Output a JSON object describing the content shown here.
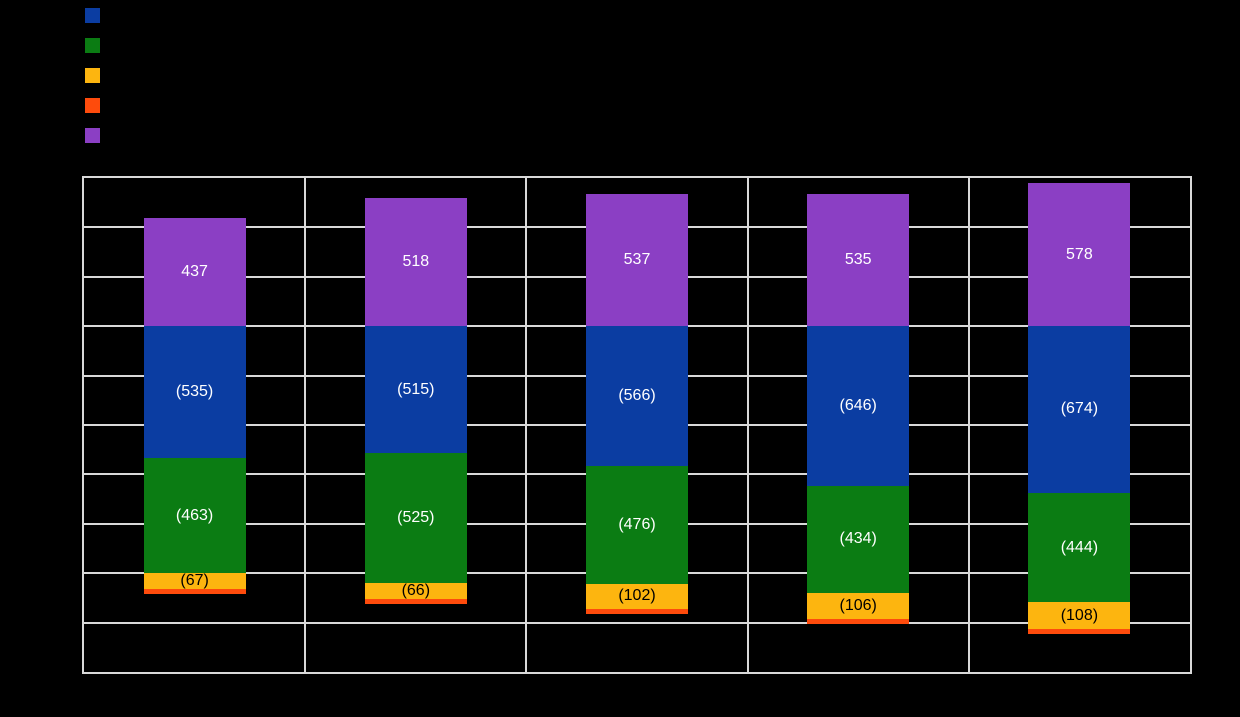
{
  "window": {
    "background_color": "#000000"
  },
  "legend": {
    "position": "top-left",
    "labels_visible": false,
    "items": [
      {
        "id": "series-1",
        "color": "#0b3da2",
        "label": ""
      },
      {
        "id": "series-2",
        "color": "#0b7c13",
        "label": ""
      },
      {
        "id": "series-3",
        "color": "#fdb50f",
        "label": ""
      },
      {
        "id": "series-4",
        "color": "#fe4b0c",
        "label": ""
      },
      {
        "id": "series-5",
        "color": "#8b3fc4",
        "label": ""
      }
    ]
  },
  "chart_data": {
    "type": "bar",
    "subtype": "stacked-positive-negative-columns",
    "title": "",
    "xlabel": "",
    "ylabel": "",
    "categories": [
      "",
      "",
      "",
      "",
      ""
    ],
    "category_count": 5,
    "ylim": [
      -1400,
      600
    ],
    "grid_step": 200,
    "grid": true,
    "axis_tick_labels_visible": false,
    "zero_line_value": 0,
    "series": [
      {
        "name": "",
        "legend_ref": "series-5",
        "color": "#8b3fc4",
        "sign": 1,
        "values": [
          437,
          518,
          537,
          535,
          578
        ],
        "labels": [
          "437",
          "518",
          "537",
          "535",
          "578"
        ],
        "label_color": "#ffffff"
      },
      {
        "name": "",
        "legend_ref": "series-1",
        "color": "#0b3da2",
        "sign": -1,
        "values": [
          535,
          515,
          566,
          646,
          674
        ],
        "labels": [
          "(535)",
          "(515)",
          "(566)",
          "(646)",
          "(674)"
        ],
        "label_color": "#ffffff"
      },
      {
        "name": "",
        "legend_ref": "series-2",
        "color": "#0b7c13",
        "sign": -1,
        "values": [
          463,
          525,
          476,
          434,
          444
        ],
        "labels": [
          "(463)",
          "(525)",
          "(476)",
          "(434)",
          "(444)"
        ],
        "label_color": "#ffffff"
      },
      {
        "name": "",
        "legend_ref": "series-3",
        "color": "#fdb50f",
        "sign": -1,
        "values": [
          67,
          66,
          102,
          106,
          108
        ],
        "labels": [
          "(67)",
          "(66)",
          "(102)",
          "(106)",
          "(108)"
        ],
        "label_color": "#000000"
      },
      {
        "name": "",
        "legend_ref": "series-4",
        "color": "#fe4b0c",
        "sign": -1,
        "values": [
          20,
          20,
          20,
          20,
          20
        ],
        "values_estimated": true,
        "labels": null,
        "label_color": null
      }
    ],
    "colors": {
      "gridline": "#d9d9d9",
      "plot_border": "#d9d9d9",
      "plot_background": "#000000"
    }
  }
}
